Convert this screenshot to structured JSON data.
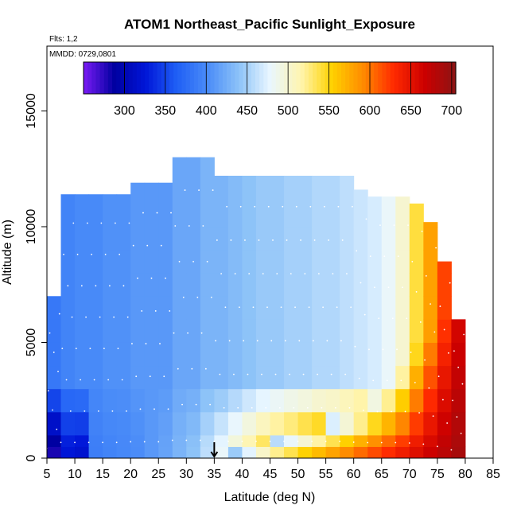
{
  "chart_data": {
    "type": "heatmap",
    "title": "ATOM1 Northeast_Pacific Sunlight_Exposure",
    "flights_text": "Flts: 1,2",
    "dates_text": "MMDD: 0729,0801",
    "xlabel": "Latitude (deg N)",
    "ylabel": "Altitude (m)",
    "xlim": [
      5,
      85
    ],
    "ylim": [
      0,
      17800
    ],
    "x_ticks": [
      5,
      10,
      15,
      20,
      25,
      30,
      35,
      40,
      45,
      50,
      55,
      60,
      65,
      70,
      75,
      80,
      85
    ],
    "y_ticks": [
      0,
      5000,
      10000,
      15000
    ],
    "colorbar": {
      "range": [
        250,
        705
      ],
      "ticks": [
        300,
        350,
        400,
        450,
        500,
        550,
        600,
        650,
        700
      ],
      "colors": [
        "#7a1bf5",
        "#0000a0",
        "#0016d8",
        "#1f5ff5",
        "#4a8cf8",
        "#8cc2f8",
        "#e8f6ff",
        "#fff5b0",
        "#ffd200",
        "#ff8c00",
        "#ff2a00",
        "#cc0000",
        "#8c1414"
      ]
    },
    "grid": false,
    "legend": "colorbar top",
    "arrow_marker_latitude": 35,
    "series": [
      {
        "lat_bins": [
          5,
          7.5,
          10,
          12.5,
          15,
          17.5,
          20,
          22.5,
          25,
          27.5,
          30,
          32.5,
          35,
          37.5,
          40,
          42.5,
          45,
          47.5,
          50,
          52.5,
          55,
          57.5,
          60,
          62.5,
          65,
          67.5,
          70,
          72.5,
          75,
          77.5
        ],
        "alt_bins": [
          0,
          500,
          1000,
          2000,
          3000,
          4000,
          5000,
          6000,
          7000,
          8000,
          9000,
          10000,
          11000,
          12000
        ],
        "top_altitude": [
          7000,
          11400,
          11400,
          11400,
          11400,
          11400,
          11900,
          11900,
          11900,
          13000,
          13000,
          13000,
          12200,
          12200,
          12200,
          12200,
          12200,
          12200,
          12200,
          12200,
          12200,
          12200,
          11600,
          11300,
          11300,
          11300,
          11000,
          10200,
          8500,
          6000
        ],
        "surface_value": [
          280,
          325,
          320,
          390,
          395,
          398,
          402,
          410,
          418,
          430,
          440,
          460,
          480,
          500,
          520,
          540,
          555,
          565,
          580,
          590,
          600,
          610,
          620,
          630,
          640,
          650,
          660,
          670,
          680,
          690
        ],
        "upper_value": [
          385,
          395,
          400,
          400,
          405,
          405,
          410,
          410,
          410,
          420,
          420,
          430,
          430,
          435,
          440,
          445,
          445,
          450,
          450,
          455,
          455,
          460,
          465,
          470,
          480,
          500,
          540,
          580,
          620,
          660
        ],
        "penetration_depth_m": [
          0,
          0,
          0,
          0,
          0,
          0,
          0,
          0,
          0,
          0,
          0,
          50,
          150,
          300,
          450,
          650,
          850,
          1000,
          1200,
          1400,
          1700,
          2000,
          2400,
          2900,
          3400,
          4000,
          4800,
          5600,
          6200,
          6000
        ]
      }
    ]
  }
}
